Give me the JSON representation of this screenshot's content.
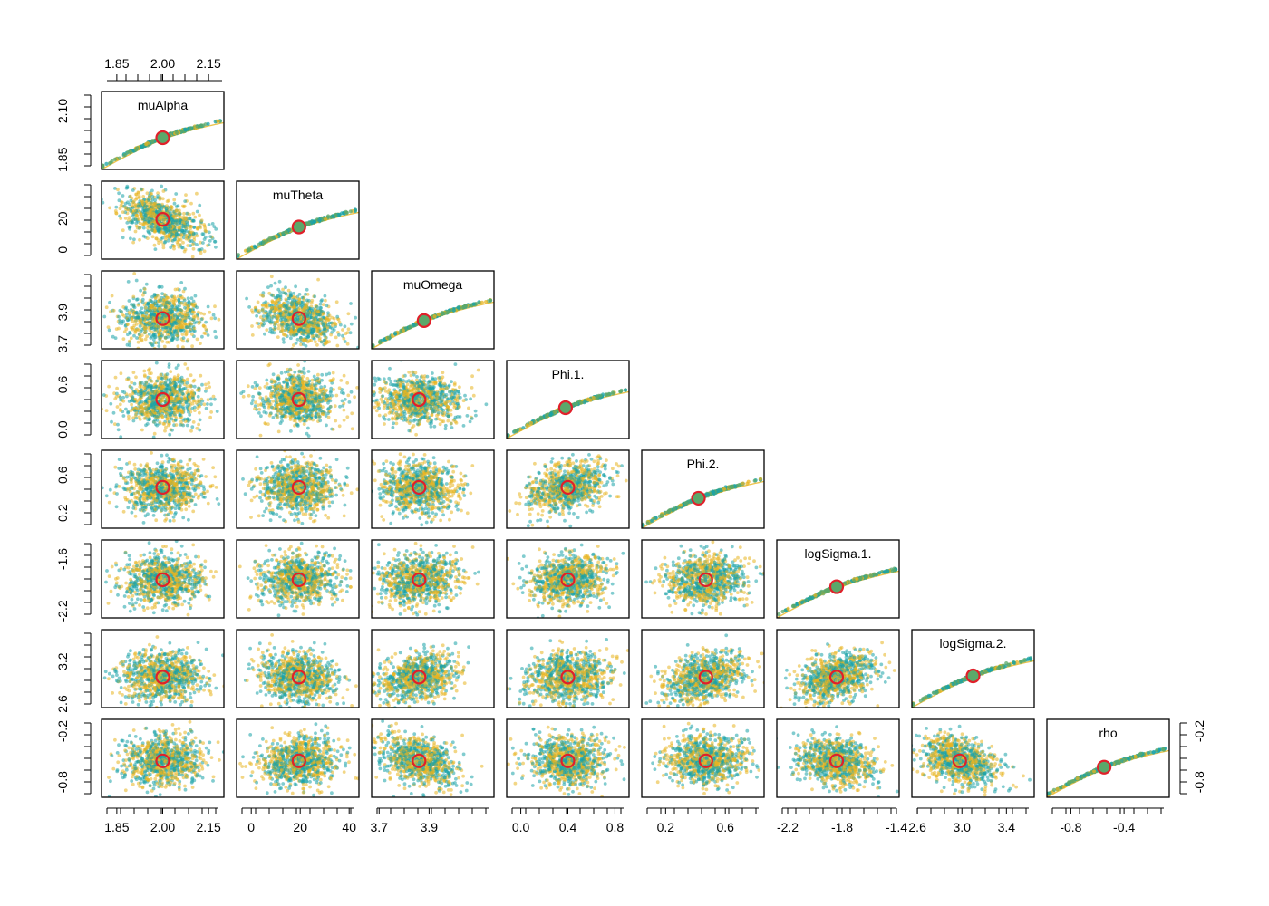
{
  "chart_data": {
    "type": "scatter",
    "title": "",
    "variables": [
      {
        "name": "muAlpha",
        "range": [
          1.8,
          2.2
        ],
        "ticks": [
          1.85,
          2.0,
          2.15
        ],
        "tick_labels": [
          "1.85",
          "2.00",
          "2.15"
        ],
        "left_ticks": [
          1.85,
          2.1
        ],
        "left_tick_labels": [
          "1.85",
          "2.10"
        ],
        "marker": 2.0,
        "diag_marker": 2.0
      },
      {
        "name": "muTheta",
        "range": [
          -6,
          44
        ],
        "ticks": [
          0,
          20,
          40
        ],
        "tick_labels": [
          "0",
          "20",
          "40"
        ],
        "left_ticks": [
          0,
          20
        ],
        "left_tick_labels": [
          "0",
          "20"
        ],
        "marker": 19.5,
        "diag_marker": 19.5
      },
      {
        "name": "muOmega",
        "range": [
          3.67,
          4.16
        ],
        "ticks": [
          3.7,
          3.9
        ],
        "tick_labels": [
          "3.7",
          "3.9"
        ],
        "left_ticks": [
          3.7,
          3.9
        ],
        "left_tick_labels": [
          "3.7",
          "3.9"
        ],
        "marker": 3.86,
        "diag_marker": 3.88
      },
      {
        "name": "Phi.1.",
        "range": [
          -0.12,
          0.92
        ],
        "ticks": [
          0.0,
          0.4,
          0.8
        ],
        "tick_labels": [
          "0.0",
          "0.4",
          "0.8"
        ],
        "left_ticks": [
          0.0,
          0.6
        ],
        "left_tick_labels": [
          "0.0",
          "0.6"
        ],
        "marker": 0.4,
        "diag_marker": 0.38
      },
      {
        "name": "Phi.2.",
        "range": [
          0.04,
          0.86
        ],
        "ticks": [
          0.2,
          0.6
        ],
        "tick_labels": [
          "0.2",
          "0.6"
        ],
        "left_ticks": [
          0.2,
          0.6
        ],
        "left_tick_labels": [
          "0.2",
          "0.6"
        ],
        "marker": 0.47,
        "diag_marker": 0.42
      },
      {
        "name": "logSigma.1.",
        "range": [
          -2.28,
          -1.38
        ],
        "ticks": [
          -2.2,
          -1.8,
          -1.4
        ],
        "tick_labels": [
          "-2.2",
          "-1.8",
          "-1.4"
        ],
        "left_ticks": [
          -2.2,
          -1.6
        ],
        "left_tick_labels": [
          "-2.2",
          "-1.6"
        ],
        "marker": -1.84,
        "diag_marker": -1.84
      },
      {
        "name": "logSigma.2.",
        "range": [
          2.55,
          3.65
        ],
        "ticks": [
          2.6,
          3.0,
          3.4
        ],
        "tick_labels": [
          "2.6",
          "3.0",
          "3.4"
        ],
        "left_ticks": [
          2.6,
          3.2
        ],
        "left_tick_labels": [
          "2.6",
          "3.2"
        ],
        "marker": 2.98,
        "diag_marker": 3.1
      },
      {
        "name": "rho",
        "range": [
          -0.98,
          -0.06
        ],
        "ticks": [
          -0.8,
          -0.4
        ],
        "tick_labels": [
          "-0.8",
          "-0.4"
        ],
        "left_ticks": [
          -0.8,
          -0.2
        ],
        "left_tick_labels": [
          "-0.8",
          "-0.2"
        ],
        "marker": -0.55,
        "diag_marker": -0.55
      }
    ],
    "correlations": [
      [
        1.0,
        -0.5,
        0.0,
        0.0,
        0.0,
        0.0,
        0.0,
        0.0
      ],
      [
        -0.5,
        1.0,
        -0.35,
        0.0,
        0.0,
        0.0,
        -0.2,
        0.1
      ],
      [
        0.0,
        -0.35,
        1.0,
        0.0,
        0.0,
        0.1,
        0.35,
        -0.35
      ],
      [
        0.0,
        0.0,
        0.0,
        1.0,
        0.35,
        0.15,
        0.1,
        0.0
      ],
      [
        0.0,
        0.0,
        0.0,
        0.35,
        1.0,
        0.0,
        0.3,
        0.0
      ],
      [
        0.0,
        0.0,
        0.1,
        0.15,
        0.0,
        1.0,
        0.35,
        -0.25
      ],
      [
        0.0,
        -0.2,
        0.35,
        0.1,
        0.3,
        0.35,
        1.0,
        -0.4
      ],
      [
        0.0,
        0.1,
        -0.35,
        0.0,
        0.0,
        -0.25,
        -0.4,
        1.0
      ]
    ],
    "series": [
      {
        "color": "#E8B420"
      },
      {
        "color": "#1AA3A8"
      }
    ],
    "marker_color": "#E0202A",
    "diag_fill": "#5BA86A",
    "grid": false,
    "legend": "none"
  }
}
